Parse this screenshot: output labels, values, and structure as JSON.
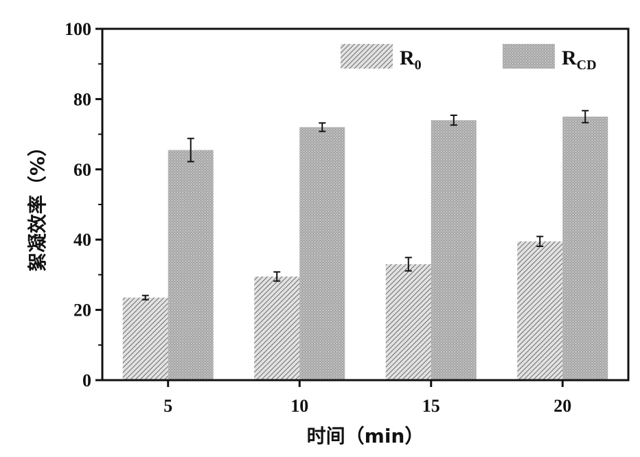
{
  "chart_data": {
    "type": "bar",
    "categories": [
      "5",
      "10",
      "15",
      "20"
    ],
    "series": [
      {
        "name": "R",
        "name_sub": "0",
        "pattern": "hatch",
        "values": [
          23.5,
          29.5,
          33.0,
          39.5
        ],
        "errors": [
          0.6,
          1.3,
          1.9,
          1.4
        ]
      },
      {
        "name": "R",
        "name_sub": "CD",
        "pattern": "stipple",
        "values": [
          65.5,
          72.0,
          74.0,
          75.0
        ],
        "errors": [
          3.3,
          1.2,
          1.4,
          1.7
        ]
      }
    ],
    "xlabel": "时间（min）",
    "ylabel": "絮凝效率（%）",
    "ylim": [
      0,
      100
    ],
    "yticks": [
      "0",
      "20",
      "40",
      "60",
      "80",
      "100"
    ],
    "grid": false,
    "legend_position": "top-right"
  }
}
